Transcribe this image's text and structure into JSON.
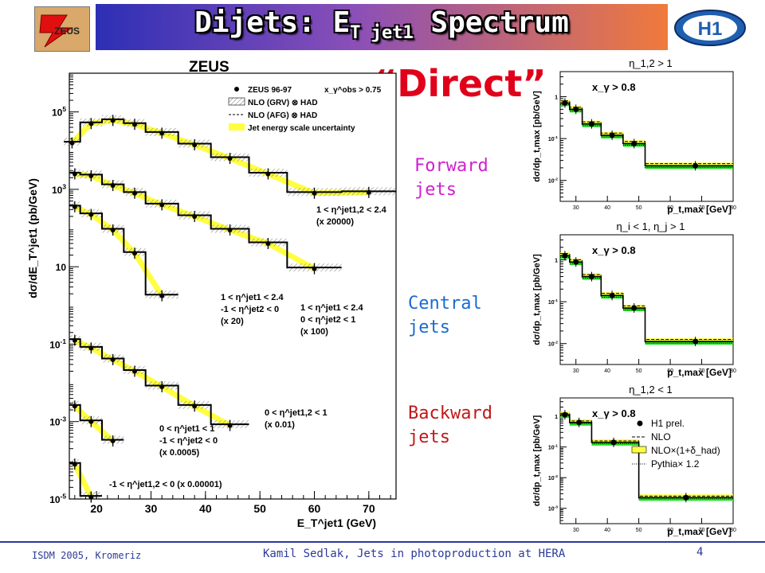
{
  "slide": {
    "title_main": "Dijets: E",
    "title_sub": "T jet1",
    "title_end": " Spectrum",
    "direct_label": "“Direct”",
    "forward_label": [
      "Forward",
      "jets"
    ],
    "central_label": [
      "Central",
      "jets"
    ],
    "backward_label": [
      "Backward",
      "jets"
    ],
    "footer_left": "ISDM 2005, Kromeriz",
    "footer_center": "Kamil Sedlak,   Jets in photoproduction at HERA",
    "page_number": "4",
    "logo_left_text": "ZEUS",
    "logo_right_text": "H1",
    "colors": {
      "forward": "#d020d0",
      "central": "#1a6ad0",
      "backward": "#c01818",
      "band": "#ffff40",
      "h1_band": "#22e022"
    }
  },
  "chart_data": [
    {
      "type": "line",
      "experiment": "ZEUS",
      "title": "ZEUS",
      "xlabel": "E_T^jet1 (GeV)",
      "ylabel": "dσ/dE_T^jet1 (pb/GeV)",
      "xlim": [
        15,
        75
      ],
      "log_y": true,
      "ylim_log10": [
        -5,
        6
      ],
      "x_ticks": [
        20,
        30,
        40,
        50,
        60,
        70
      ],
      "y_ticks": [
        {
          "log": 5,
          "label": "10^5"
        },
        {
          "log": 3,
          "label": "10^3"
        },
        {
          "log": 1,
          "label": "10"
        },
        {
          "log": -1,
          "label": "10^-1"
        },
        {
          "log": -3,
          "label": "10^-3"
        },
        {
          "log": -5,
          "label": "10^-5"
        }
      ],
      "legend": [
        "ZEUS 96-97",
        "NLO (GRV) ⊗ HAD",
        "NLO (AFG) ⊗ HAD",
        "Jet energy scale uncertainty"
      ],
      "legend_cut": "x_γ^obs > 0.75",
      "series": [
        {
          "region": [
            "1 < η^jet1,2 < 2.4",
            "(x 20000)"
          ],
          "edges": [
            14,
            17,
            21,
            25,
            29,
            35,
            41,
            48,
            55,
            65,
            75
          ],
          "x": [
            15.5,
            19,
            23,
            27,
            32,
            38,
            44.5,
            51.5,
            60,
            70
          ],
          "log_y": [
            4.2,
            4.7,
            4.78,
            4.68,
            4.45,
            4.15,
            3.8,
            3.4,
            2.9,
            2.92
          ]
        },
        {
          "region": [
            "1 < η^jet1 < 2.4",
            "0 < η^jet2 < 1",
            "(x 100)"
          ],
          "edges": [
            15,
            17,
            21,
            25,
            29,
            35,
            41,
            48,
            55,
            65
          ],
          "x": [
            16,
            19,
            23,
            27,
            32,
            38,
            44.5,
            51.5,
            60
          ],
          "log_y": [
            3.4,
            3.35,
            3.1,
            2.9,
            2.6,
            2.3,
            1.95,
            1.6,
            0.95
          ]
        },
        {
          "region": [
            "1 < η^jet1 < 2.4",
            "-1 < η^jet2 < 0",
            "(x 20)"
          ],
          "edges": [
            15,
            17,
            21,
            25,
            29,
            35
          ],
          "x": [
            16,
            19,
            23,
            27,
            32
          ],
          "log_y": [
            2.55,
            2.35,
            1.95,
            1.35,
            0.25
          ]
        },
        {
          "region": [
            "0 < η^jet1,2 < 1",
            "(x 0.01)"
          ],
          "edges": [
            15,
            17,
            21,
            25,
            29,
            35,
            41,
            48
          ],
          "x": [
            16,
            19,
            23,
            27,
            32,
            38,
            44.5
          ],
          "log_y": [
            -0.9,
            -1.1,
            -1.4,
            -1.7,
            -2.1,
            -2.6,
            -3.1
          ]
        },
        {
          "region": [
            "0 < η^jet1 < 1",
            "-1 < η^jet2 < 0",
            "(x 0.0005)"
          ],
          "edges": [
            15,
            17,
            21,
            25
          ],
          "x": [
            16,
            19,
            23
          ],
          "log_y": [
            -2.6,
            -3.0,
            -3.5
          ]
        },
        {
          "region": [
            "-1 < η^jet1,2 < 0 (x 0.00001)"
          ],
          "edges": [
            15,
            17,
            21
          ],
          "x": [
            16,
            19
          ],
          "log_y": [
            -4.1,
            -4.95
          ]
        }
      ]
    },
    {
      "type": "line",
      "experiment": "H1",
      "title": "η_1,2 > 1",
      "cut": "x_γ > 0.8",
      "xlabel": "p_t,max [GeV]",
      "ylabel": "dσ/dp_t,max [pb/GeV]",
      "xlim": [
        25,
        80
      ],
      "x_ticks": [
        30,
        40,
        50,
        60,
        70,
        80
      ],
      "log_y": [
        -0.15,
        -0.3,
        -0.65,
        -0.92,
        -1.12,
        -1.65
      ],
      "ylim_log10": [
        -2.5,
        0.6
      ],
      "y_ticks": [
        {
          "log": 0,
          "label": "1"
        },
        {
          "log": -1,
          "label": "10^-1"
        },
        {
          "log": -2,
          "label": "10^-2"
        }
      ],
      "edges": [
        25,
        28,
        32,
        38,
        45,
        52,
        80
      ],
      "x": [
        26.5,
        30,
        35,
        41.5,
        48.5,
        68
      ]
    },
    {
      "type": "line",
      "experiment": "H1",
      "title": "η_i < 1, η_j > 1",
      "cut": "x_γ > 0.8",
      "xlabel": "p_t,max [GeV]",
      "ylabel": "dσ/dp_t,max [pb/GeV]",
      "xlim": [
        25,
        80
      ],
      "x_ticks": [
        30,
        40,
        50,
        60,
        70,
        80
      ],
      "log_y": [
        0.1,
        -0.05,
        -0.4,
        -0.85,
        -1.15,
        -1.95
      ],
      "ylim_log10": [
        -2.5,
        0.6
      ],
      "y_ticks": [
        {
          "log": 0,
          "label": "1"
        },
        {
          "log": -1,
          "label": "10^-1"
        },
        {
          "log": -2,
          "label": "10^-2"
        }
      ],
      "edges": [
        25,
        28,
        32,
        38,
        45,
        52,
        80
      ],
      "x": [
        26.5,
        30,
        35,
        41.5,
        48.5,
        68
      ]
    },
    {
      "type": "line",
      "experiment": "H1",
      "title": "η_1,2 < 1",
      "cut": "x_γ > 0.8",
      "xlabel": "p_t,max [GeV]",
      "ylabel": "dσ/dp_t,max [pb/GeV]",
      "xlim": [
        25,
        80
      ],
      "x_ticks": [
        30,
        40,
        50,
        60,
        70,
        80
      ],
      "log_y": [
        0.05,
        -0.2,
        -0.85,
        -2.65
      ],
      "ylim_log10": [
        -3.5,
        0.6
      ],
      "y_ticks": [
        {
          "log": 0,
          "label": "1"
        },
        {
          "log": -1,
          "label": "10^-1"
        },
        {
          "log": -2,
          "label": "10^-2"
        },
        {
          "log": -3,
          "label": "10^-3"
        }
      ],
      "legend": [
        "H1 prel.",
        "NLO",
        "NLO×(1+δ_had)",
        "Pythia× 1.2"
      ],
      "edges": [
        25,
        28,
        35,
        50,
        80
      ],
      "x": [
        26.5,
        31,
        42,
        65
      ]
    }
  ]
}
